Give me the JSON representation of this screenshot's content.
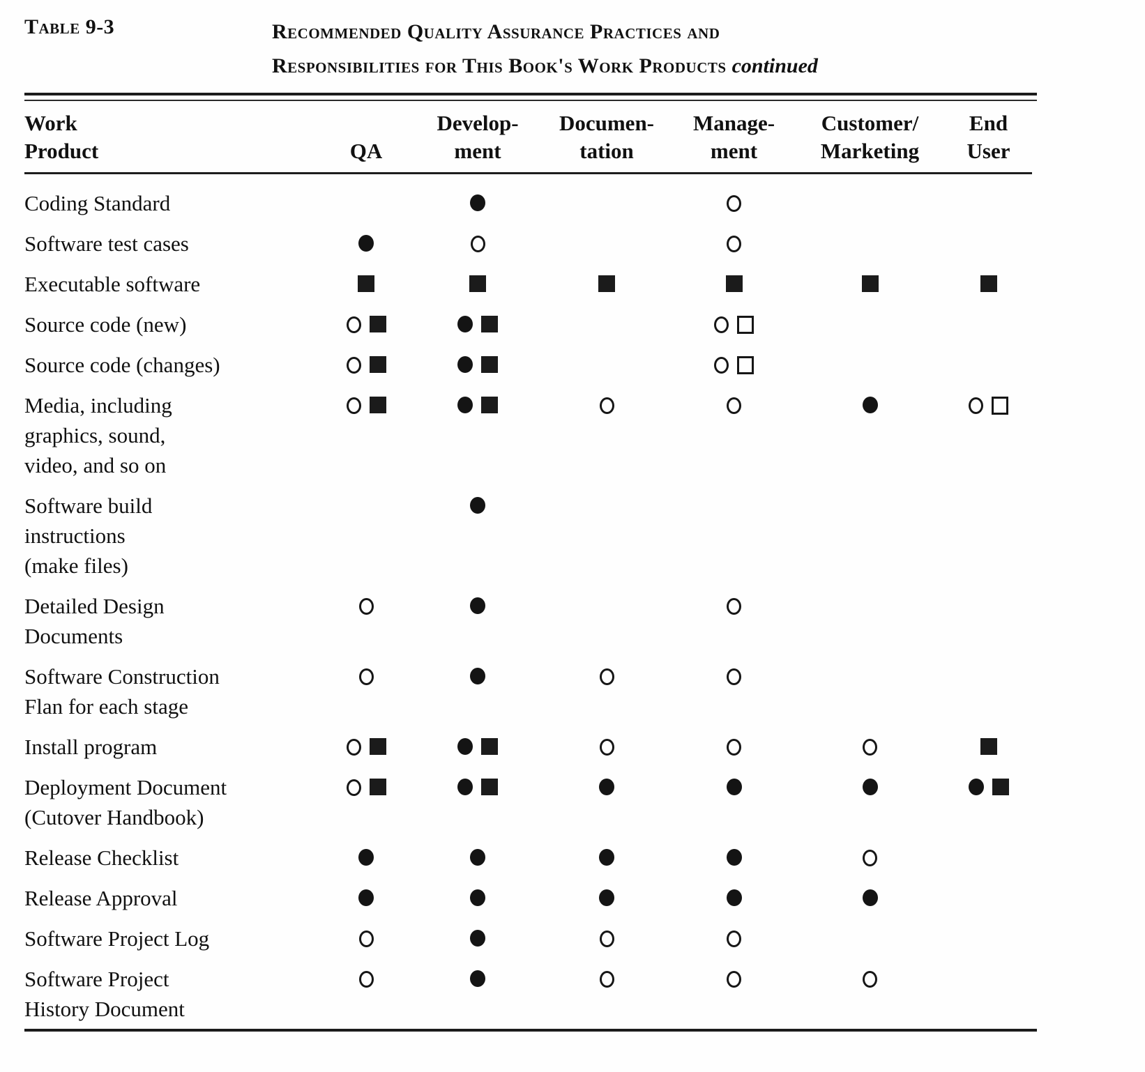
{
  "caption": {
    "table_label": "Table 9-3",
    "title_line1": "Recommended Quality Assurance Practices and",
    "title_line2": "Responsibilities for This Book's Work Products",
    "continued": "continued"
  },
  "symbols": {
    "fc": {
      "name": "filled-circle",
      "meaning": "filled circle"
    },
    "oc": {
      "name": "open-circle",
      "meaning": "open circle"
    },
    "fs": {
      "name": "filled-square",
      "meaning": "filled square"
    },
    "os": {
      "name": "open-square",
      "meaning": "open square"
    }
  },
  "table": {
    "column_keys": [
      "work-product",
      "qa",
      "development",
      "documentation",
      "management",
      "customer-marketing",
      "end-user"
    ],
    "columns": [
      "Work\nProduct",
      "QA",
      "Develop-\nment",
      "Documen-\ntation",
      "Manage-\nment",
      "Customer/\nMarketing",
      "End\nUser"
    ],
    "rows": [
      {
        "label": "Coding Standard",
        "cells": [
          [],
          [
            "fc"
          ],
          [],
          [
            "oc"
          ],
          [],
          []
        ]
      },
      {
        "label": "Software test cases",
        "cells": [
          [
            "fc"
          ],
          [
            "oc"
          ],
          [],
          [
            "oc"
          ],
          [],
          []
        ]
      },
      {
        "label": "Executable software",
        "cells": [
          [
            "fs"
          ],
          [
            "fs"
          ],
          [
            "fs"
          ],
          [
            "fs"
          ],
          [
            "fs"
          ],
          [
            "fs"
          ]
        ]
      },
      {
        "label": "Source code (new)",
        "cells": [
          [
            "oc",
            "fs"
          ],
          [
            "fc",
            "fs"
          ],
          [],
          [
            "oc",
            "os"
          ],
          [],
          []
        ]
      },
      {
        "label": "Source code (changes)",
        "cells": [
          [
            "oc",
            "fs"
          ],
          [
            "fc",
            "fs"
          ],
          [],
          [
            "oc",
            "os"
          ],
          [],
          []
        ]
      },
      {
        "label": "Media, including\ngraphics, sound,\nvideo, and so on",
        "cells": [
          [
            "oc",
            "fs"
          ],
          [
            "fc",
            "fs"
          ],
          [
            "oc"
          ],
          [
            "oc"
          ],
          [
            "fc"
          ],
          [
            "oc",
            "os"
          ]
        ]
      },
      {
        "label": "Software build\ninstructions\n(make files)",
        "cells": [
          [],
          [
            "fc"
          ],
          [],
          [],
          [],
          []
        ]
      },
      {
        "label": "Detailed Design\nDocuments",
        "cells": [
          [
            "oc"
          ],
          [
            "fc"
          ],
          [],
          [
            "oc"
          ],
          [],
          []
        ]
      },
      {
        "label": "Software Construction\nFlan for each stage",
        "cells": [
          [
            "oc"
          ],
          [
            "fc"
          ],
          [
            "oc"
          ],
          [
            "oc"
          ],
          [],
          []
        ]
      },
      {
        "label": "Install program",
        "cells": [
          [
            "oc",
            "fs"
          ],
          [
            "fc",
            "fs"
          ],
          [
            "oc"
          ],
          [
            "oc"
          ],
          [
            "oc"
          ],
          [
            "fs"
          ]
        ]
      },
      {
        "label": "Deployment Document\n(Cutover Handbook)",
        "cells": [
          [
            "oc",
            "fs"
          ],
          [
            "fc",
            "fs"
          ],
          [
            "fc"
          ],
          [
            "fc"
          ],
          [
            "fc"
          ],
          [
            "fc",
            "fs"
          ]
        ]
      },
      {
        "label": "Release Checklist",
        "cells": [
          [
            "fc"
          ],
          [
            "fc"
          ],
          [
            "fc"
          ],
          [
            "fc"
          ],
          [
            "oc"
          ],
          []
        ]
      },
      {
        "label": "Release Approval",
        "cells": [
          [
            "fc"
          ],
          [
            "fc"
          ],
          [
            "fc"
          ],
          [
            "fc"
          ],
          [
            "fc"
          ],
          []
        ]
      },
      {
        "label": "Software Project Log",
        "cells": [
          [
            "oc"
          ],
          [
            "fc"
          ],
          [
            "oc"
          ],
          [
            "oc"
          ],
          [],
          []
        ]
      },
      {
        "label": "Software Project\nHistory Document",
        "cells": [
          [
            "oc"
          ],
          [
            "fc"
          ],
          [
            "oc"
          ],
          [
            "oc"
          ],
          [
            "oc"
          ],
          []
        ]
      }
    ]
  }
}
